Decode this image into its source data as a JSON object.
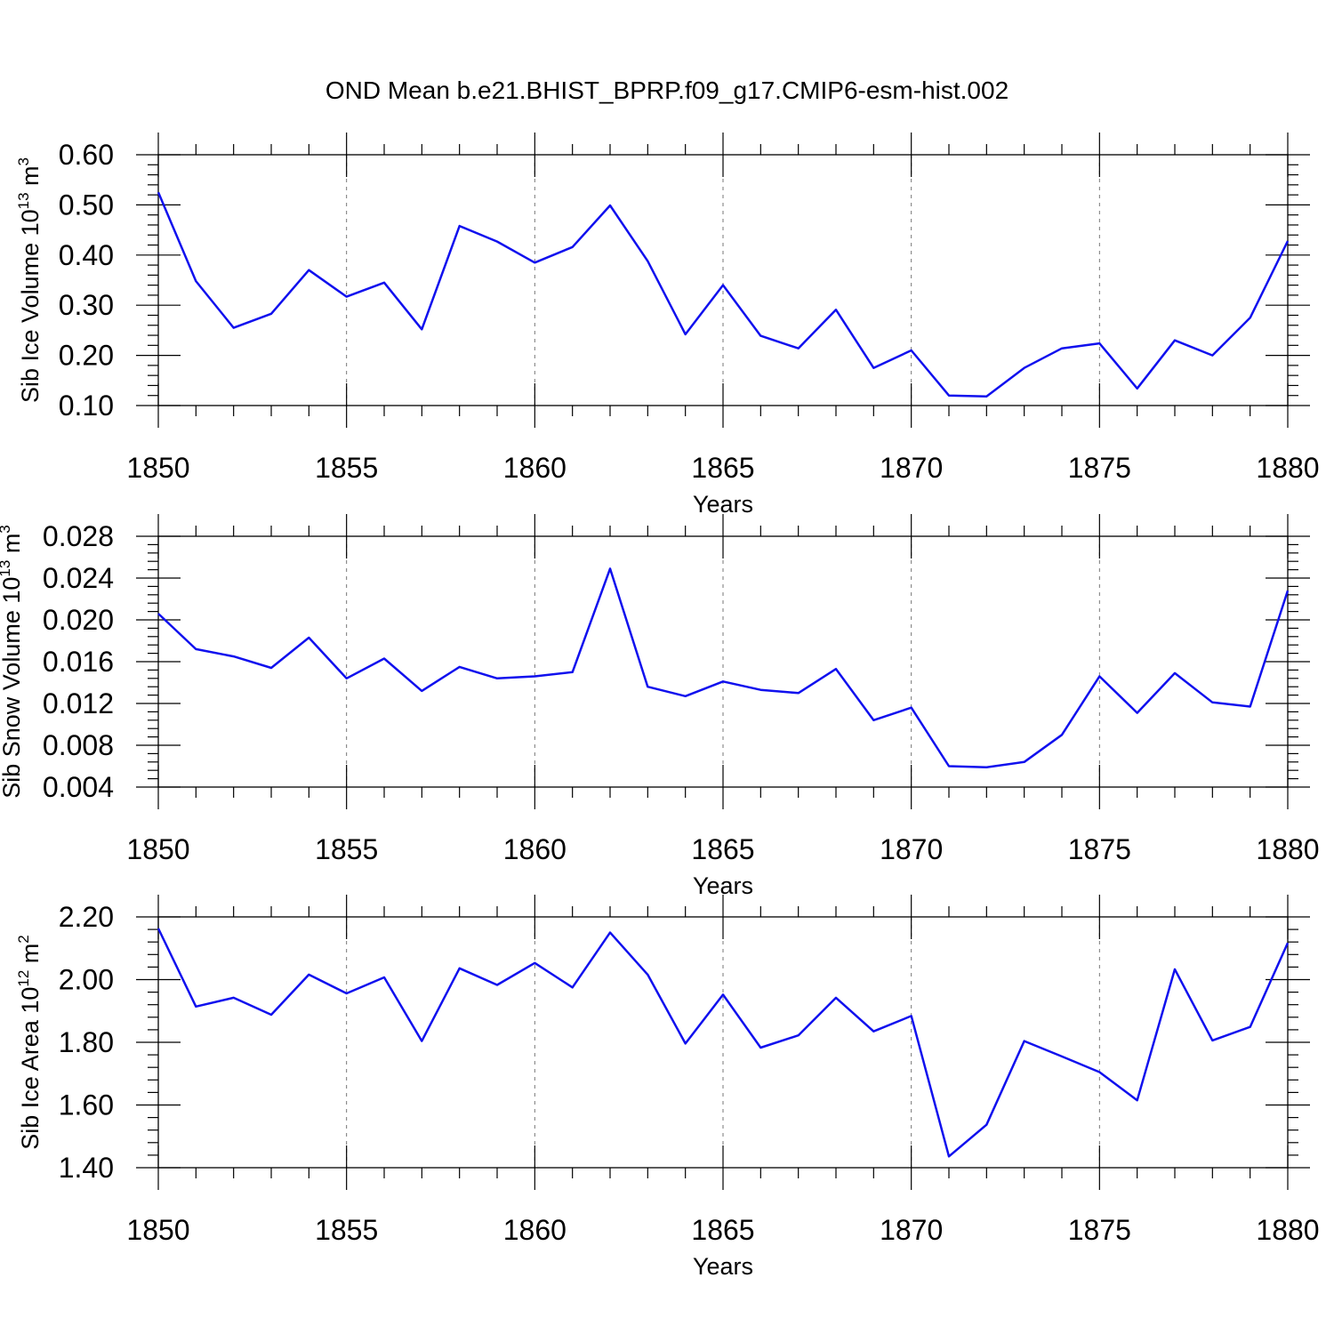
{
  "title": "OND Mean b.e21.BHIST_BPRP.f09_g17.CMIP6-esm-hist.002",
  "line_color": "#1010ee",
  "chart_data": [
    {
      "type": "line",
      "ylabel": {
        "text": "Sib Ice Volume 10",
        "sup": "13",
        "unit": " m",
        "unit_sup": "3"
      },
      "xlabel": "Years",
      "xlim": [
        1850,
        1880
      ],
      "ylim": [
        0.1,
        0.6
      ],
      "yticks": [
        0.1,
        0.2,
        0.3,
        0.4,
        0.5,
        0.6
      ],
      "ytick_labels": [
        "0.10",
        "0.20",
        "0.30",
        "0.40",
        "0.50",
        "0.60"
      ],
      "xticks": [
        1850,
        1855,
        1860,
        1865,
        1870,
        1875,
        1880
      ],
      "xtick_labels": [
        "1850",
        "1855",
        "1860",
        "1865",
        "1870",
        "1875",
        "1880"
      ],
      "grid": "x-dashed",
      "x": [
        1850,
        1851,
        1852,
        1853,
        1854,
        1855,
        1856,
        1857,
        1858,
        1859,
        1860,
        1861,
        1862,
        1863,
        1864,
        1865,
        1866,
        1867,
        1868,
        1869,
        1870,
        1871,
        1872,
        1873,
        1874,
        1875,
        1876,
        1877,
        1878,
        1879,
        1880
      ],
      "values": [
        0.525,
        0.348,
        0.255,
        0.283,
        0.37,
        0.317,
        0.345,
        0.252,
        0.458,
        0.427,
        0.385,
        0.416,
        0.499,
        0.388,
        0.242,
        0.34,
        0.239,
        0.214,
        0.291,
        0.175,
        0.21,
        0.12,
        0.118,
        0.175,
        0.214,
        0.224,
        0.134,
        0.23,
        0.2,
        0.275,
        0.428
      ]
    },
    {
      "type": "line",
      "ylabel": {
        "text": "Sib Snow Volume 10",
        "sup": "13",
        "unit": " m",
        "unit_sup": "3"
      },
      "xlabel": "Years",
      "xlim": [
        1850,
        1880
      ],
      "ylim": [
        0.004,
        0.028
      ],
      "yticks": [
        0.004,
        0.008,
        0.012,
        0.016,
        0.02,
        0.024,
        0.028
      ],
      "ytick_labels": [
        "0.004",
        "0.008",
        "0.012",
        "0.016",
        "0.020",
        "0.024",
        "0.028"
      ],
      "xticks": [
        1850,
        1855,
        1860,
        1865,
        1870,
        1875,
        1880
      ],
      "xtick_labels": [
        "1850",
        "1855",
        "1860",
        "1865",
        "1870",
        "1875",
        "1880"
      ],
      "grid": "x-dashed",
      "x": [
        1850,
        1851,
        1852,
        1853,
        1854,
        1855,
        1856,
        1857,
        1858,
        1859,
        1860,
        1861,
        1862,
        1863,
        1864,
        1865,
        1866,
        1867,
        1868,
        1869,
        1870,
        1871,
        1872,
        1873,
        1874,
        1875,
        1876,
        1877,
        1878,
        1879,
        1880
      ],
      "values": [
        0.0206,
        0.0172,
        0.0165,
        0.0154,
        0.0183,
        0.0144,
        0.0163,
        0.0132,
        0.0155,
        0.0144,
        0.0146,
        0.015,
        0.0249,
        0.0136,
        0.0127,
        0.0141,
        0.0133,
        0.013,
        0.0153,
        0.0104,
        0.0116,
        0.006,
        0.0059,
        0.0064,
        0.009,
        0.0146,
        0.0111,
        0.0149,
        0.0121,
        0.0117,
        0.0228
      ]
    },
    {
      "type": "line",
      "ylabel": {
        "text": "Sib Ice Area 10",
        "sup": "12",
        "unit": " m",
        "unit_sup": "2"
      },
      "xlabel": "Years",
      "xlim": [
        1850,
        1880
      ],
      "ylim": [
        1.4,
        2.2
      ],
      "yticks": [
        1.4,
        1.6,
        1.8,
        2.0,
        2.2
      ],
      "ytick_labels": [
        "1.40",
        "1.60",
        "1.80",
        "2.00",
        "2.20"
      ],
      "xticks": [
        1850,
        1855,
        1860,
        1865,
        1870,
        1875,
        1880
      ],
      "xtick_labels": [
        "1850",
        "1855",
        "1860",
        "1865",
        "1870",
        "1875",
        "1880"
      ],
      "grid": "x-dashed",
      "x": [
        1850,
        1851,
        1852,
        1853,
        1854,
        1855,
        1856,
        1857,
        1858,
        1859,
        1860,
        1861,
        1862,
        1863,
        1864,
        1865,
        1866,
        1867,
        1868,
        1869,
        1870,
        1871,
        1872,
        1873,
        1874,
        1875,
        1876,
        1877,
        1878,
        1879,
        1880
      ],
      "values": [
        2.163,
        1.914,
        1.942,
        1.888,
        2.016,
        1.956,
        2.007,
        1.804,
        2.036,
        1.983,
        2.053,
        1.975,
        2.15,
        2.016,
        1.796,
        1.952,
        1.783,
        1.822,
        1.942,
        1.835,
        1.884,
        1.436,
        1.537,
        1.804,
        1.755,
        1.705,
        1.615,
        2.033,
        1.806,
        1.849,
        2.117
      ]
    }
  ]
}
